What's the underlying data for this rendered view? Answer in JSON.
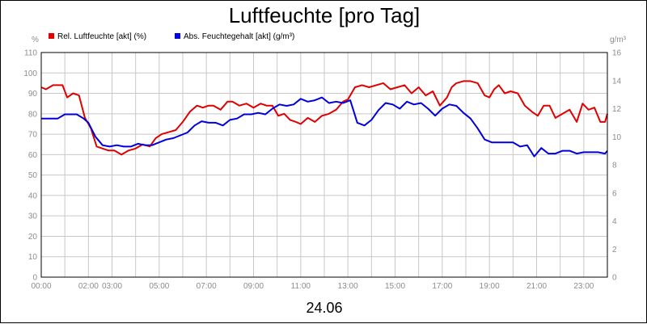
{
  "chart_data": {
    "type": "line",
    "title": "Luftfeuchte [pro Tag]",
    "xlabel": "24.06",
    "y_left_unit": "%",
    "y_right_unit": "g/m³",
    "ylim_left": [
      0,
      110
    ],
    "ylim_right": [
      0,
      16
    ],
    "yticks_left": [
      "0",
      "10",
      "20",
      "30",
      "40",
      "50",
      "60",
      "70",
      "80",
      "90",
      "100",
      "110"
    ],
    "yticks_right": [
      "0",
      "2",
      "4",
      "6",
      "8",
      "10",
      "12",
      "14",
      "16"
    ],
    "xlim": [
      0,
      24
    ],
    "xticks": [
      {
        "label": "00:00",
        "x": 0
      },
      {
        "label": "02:00",
        "x": 2
      },
      {
        "label": "03:00",
        "x": 3
      },
      {
        "label": "05:00",
        "x": 5
      },
      {
        "label": "07:00",
        "x": 7
      },
      {
        "label": "09:00",
        "x": 9
      },
      {
        "label": "11:00",
        "x": 11
      },
      {
        "label": "13:00",
        "x": 13
      },
      {
        "label": "15:00",
        "x": 15
      },
      {
        "label": "17:00",
        "x": 17
      },
      {
        "label": "19:00",
        "x": 19
      },
      {
        "label": "21:00",
        "x": 21
      },
      {
        "label": "23:00",
        "x": 23
      }
    ],
    "grid": true,
    "legend_position": "top-left",
    "series": [
      {
        "name": "Rel. Luftfeuchte [akt] (%)",
        "axis": "left",
        "color": "#e00000",
        "x": [
          0,
          0.2,
          0.5,
          0.9,
          1.1,
          1.35,
          1.6,
          1.85,
          2.1,
          2.35,
          2.6,
          2.85,
          3.1,
          3.4,
          3.7,
          4.0,
          4.3,
          4.6,
          4.85,
          5.1,
          5.4,
          5.7,
          6.0,
          6.3,
          6.6,
          6.85,
          7.1,
          7.3,
          7.6,
          7.9,
          8.1,
          8.4,
          8.7,
          9.0,
          9.3,
          9.55,
          9.8,
          10.05,
          10.3,
          10.55,
          10.8,
          11.0,
          11.3,
          11.6,
          11.9,
          12.2,
          12.5,
          12.8,
          13.0,
          13.3,
          13.6,
          13.9,
          14.2,
          14.5,
          14.8,
          15.1,
          15.4,
          15.7,
          16.0,
          16.3,
          16.6,
          16.9,
          17.2,
          17.4,
          17.6,
          17.9,
          18.2,
          18.5,
          18.8,
          19.0,
          19.2,
          19.4,
          19.65,
          19.9,
          20.2,
          20.5,
          20.8,
          21.05,
          21.3,
          21.55,
          21.8,
          22.1,
          22.4,
          22.7,
          22.95,
          23.2,
          23.45,
          23.7,
          23.9,
          24.0
        ],
        "values": [
          93,
          92,
          94,
          94,
          88,
          90,
          89,
          78,
          73,
          64,
          63,
          62,
          62,
          60,
          62,
          63,
          65,
          64,
          68,
          70,
          71,
          72,
          76,
          81,
          84,
          83,
          84,
          84,
          82,
          86,
          86,
          84,
          85,
          83,
          85,
          84,
          84,
          79,
          80,
          77,
          76,
          75,
          78,
          76,
          79,
          80,
          82,
          86,
          87,
          93,
          94,
          93,
          94,
          95,
          92,
          93,
          94,
          90,
          93,
          89,
          91,
          84,
          88,
          93,
          95,
          96,
          96,
          95,
          89,
          88,
          92,
          94,
          90,
          91,
          90,
          84,
          81,
          79,
          84,
          84,
          78,
          80,
          82,
          76,
          85,
          82,
          83,
          76,
          76,
          80
        ]
      },
      {
        "name": "Abs. Feuchtegehalt [akt] (g/m³)",
        "axis": "right",
        "color": "#0000dd",
        "x": [
          0,
          0.3,
          0.7,
          1.0,
          1.2,
          1.5,
          1.8,
          2.0,
          2.3,
          2.6,
          2.9,
          3.2,
          3.5,
          3.8,
          4.1,
          4.4,
          4.7,
          5.0,
          5.3,
          5.6,
          5.9,
          6.2,
          6.5,
          6.8,
          7.1,
          7.4,
          7.7,
          8.0,
          8.3,
          8.6,
          8.9,
          9.2,
          9.5,
          9.8,
          10.1,
          10.4,
          10.7,
          11.0,
          11.3,
          11.6,
          11.9,
          12.2,
          12.5,
          12.8,
          13.1,
          13.4,
          13.7,
          14.0,
          14.3,
          14.6,
          14.9,
          15.2,
          15.5,
          15.8,
          16.1,
          16.4,
          16.7,
          17.0,
          17.3,
          17.6,
          17.9,
          18.2,
          18.5,
          18.8,
          19.1,
          19.4,
          19.7,
          20.0,
          20.3,
          20.6,
          20.9,
          21.2,
          21.5,
          21.8,
          22.1,
          22.4,
          22.7,
          23.0,
          23.3,
          23.6,
          23.9,
          24.0
        ],
        "values": [
          11.3,
          11.3,
          11.3,
          11.6,
          11.6,
          11.6,
          11.3,
          11.0,
          10.0,
          9.4,
          9.3,
          9.4,
          9.3,
          9.3,
          9.5,
          9.4,
          9.4,
          9.6,
          9.8,
          9.9,
          10.1,
          10.3,
          10.8,
          11.1,
          11.0,
          11.0,
          10.8,
          11.2,
          11.3,
          11.6,
          11.6,
          11.7,
          11.6,
          12.0,
          12.3,
          12.2,
          12.3,
          12.7,
          12.5,
          12.6,
          12.8,
          12.4,
          12.5,
          12.4,
          12.6,
          11.0,
          10.8,
          11.2,
          11.9,
          12.4,
          12.3,
          12.0,
          12.5,
          12.3,
          12.4,
          12.0,
          11.5,
          12.0,
          12.3,
          12.2,
          11.7,
          11.3,
          10.6,
          9.8,
          9.6,
          9.6,
          9.6,
          9.6,
          9.3,
          9.4,
          8.6,
          9.2,
          8.8,
          8.8,
          9.0,
          9.0,
          8.8,
          8.9,
          8.9,
          8.9,
          8.8,
          9.0
        ]
      }
    ]
  }
}
